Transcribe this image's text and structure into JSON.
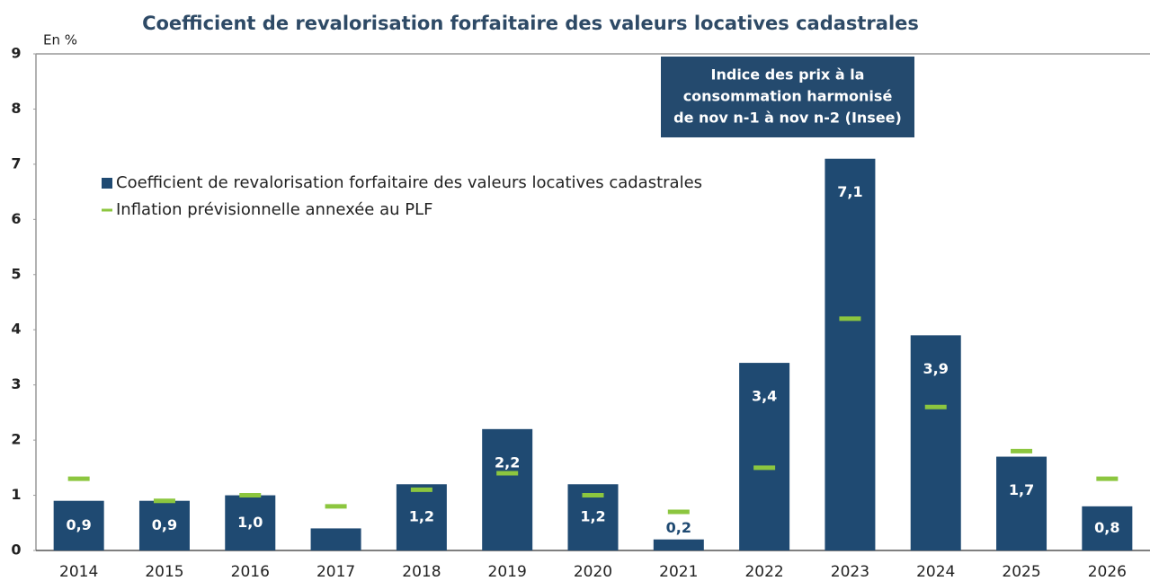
{
  "chart_data": {
    "type": "bar",
    "title": "Coefficient de revalorisation forfaitaire des valeurs locatives cadastrales",
    "y_label": "En %",
    "annotation": [
      "Indice des prix à la",
      "consommation harmonisé",
      "de nov n-1 à nov n-2 (Insee)"
    ],
    "categories": [
      "2014",
      "2015",
      "2016",
      "2017",
      "2018",
      "2019",
      "2020",
      "2021",
      "2022",
      "2023",
      "2024",
      "2025",
      "2026"
    ],
    "series": [
      {
        "name": "Coefficient de revalorisation forfaitaire des valeurs locatives cadastrales",
        "color": "#1f4a72",
        "mark": "bar",
        "values": [
          0.9,
          0.9,
          1.0,
          0.4,
          1.2,
          2.2,
          1.2,
          0.2,
          3.4,
          7.1,
          3.9,
          1.7,
          0.8
        ],
        "value_labels": [
          "0,9",
          "0,9",
          "1,0",
          null,
          "1,2",
          "2,2",
          "1,2",
          "0,2",
          "3,4",
          "7,1",
          "3,9",
          "1,7",
          "0,8"
        ]
      },
      {
        "name": "Inflation prévisionnelle annexée au PLF",
        "color": "#8cc63f",
        "mark": "dash",
        "values": [
          1.3,
          0.9,
          1.0,
          0.8,
          1.1,
          1.4,
          1.0,
          0.7,
          1.5,
          4.2,
          2.6,
          1.8,
          1.3
        ]
      }
    ],
    "ylim": [
      0,
      9
    ],
    "yticks": [
      0,
      1,
      2,
      3,
      4,
      5,
      6,
      7,
      8,
      9
    ],
    "grid": false
  }
}
